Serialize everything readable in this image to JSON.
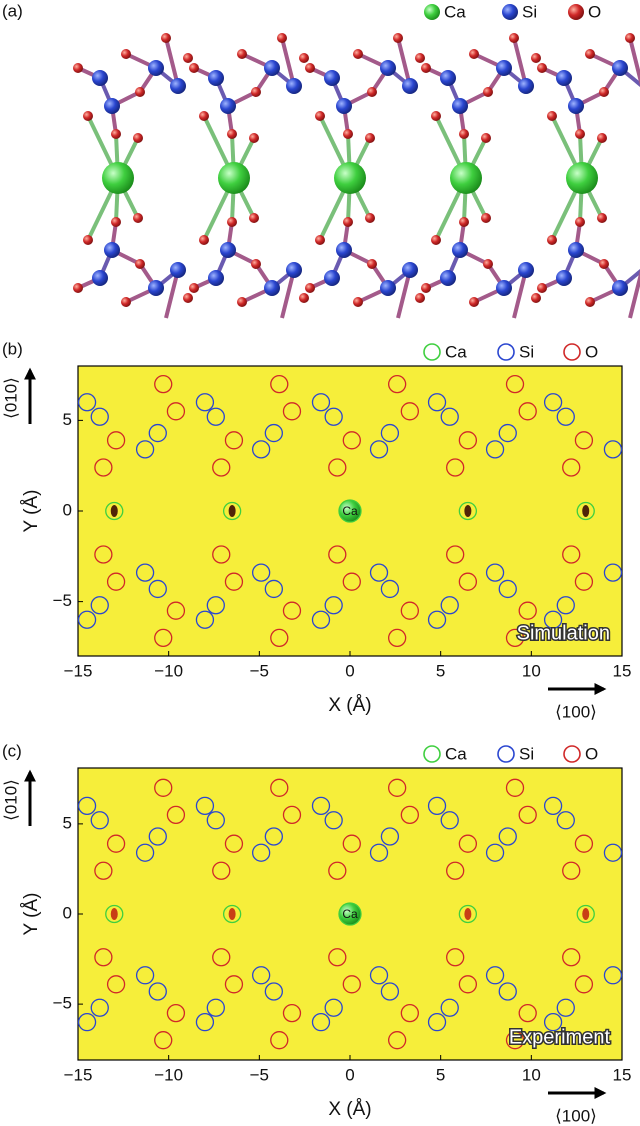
{
  "panel_a": {
    "label": "(a)",
    "legend": [
      {
        "name": "Ca",
        "color": "#3fcf3f"
      },
      {
        "name": "Si",
        "color": "#2a46d0"
      },
      {
        "name": "O",
        "color": "#d02828"
      }
    ]
  },
  "chart_data": [
    {
      "type": "scatter",
      "panel_label": "(b)",
      "annotation": "Simulation",
      "center_label": "Ca",
      "x_label": "X (Å)",
      "y_label": "Y (Å)",
      "x_direction": "⟨100⟩",
      "y_direction": "⟨010⟩",
      "xlim": [
        -15,
        15
      ],
      "ylim": [
        -8,
        8
      ],
      "xticks": [
        {
          "value": -15,
          "label": "−15"
        },
        {
          "value": -10,
          "label": "−10"
        },
        {
          "value": -5,
          "label": "−5"
        },
        0,
        5,
        10,
        15
      ],
      "yticks": [
        {
          "value": -5,
          "label": "−5"
        },
        0,
        5
      ],
      "series": [
        {
          "name": "Ca",
          "color": "#3fcf3f",
          "x": [
            -13,
            -6.5,
            0,
            6.5,
            13
          ],
          "y": [
            0,
            0,
            0,
            0,
            0
          ]
        },
        {
          "name": "Si",
          "color": "#2a46d0",
          "x": [
            -14.5,
            -13.8,
            -11.3,
            -10.6,
            -8.0,
            -7.4,
            -4.9,
            -4.2,
            -1.6,
            -0.9,
            1.6,
            2.2,
            4.8,
            5.5,
            8.0,
            8.7,
            11.2,
            11.9,
            14.5,
            -14.5,
            -13.8,
            -11.3,
            -10.6,
            -8.0,
            -7.4,
            -4.9,
            -4.2,
            -1.6,
            -0.9,
            1.6,
            2.2,
            4.8,
            5.5,
            8.0,
            8.7,
            11.2,
            11.9,
            14.5
          ],
          "y": [
            6.0,
            5.2,
            3.4,
            4.3,
            6.0,
            5.2,
            3.4,
            4.3,
            6.0,
            5.2,
            3.4,
            4.3,
            6.0,
            5.2,
            3.4,
            4.3,
            6.0,
            5.2,
            3.4,
            -6.0,
            -5.2,
            -3.4,
            -4.3,
            -6.0,
            -5.2,
            -3.4,
            -4.3,
            -6.0,
            -5.2,
            -3.4,
            -4.3,
            -6.0,
            -5.2,
            -3.4,
            -4.3,
            -6.0,
            -5.2,
            -3.4
          ]
        },
        {
          "name": "O",
          "color": "#d02828",
          "x": [
            -10.3,
            -9.6,
            -12.9,
            -13.6,
            -3.9,
            -3.2,
            -6.4,
            -7.1,
            2.6,
            3.3,
            0.1,
            -0.7,
            9.1,
            9.8,
            6.5,
            5.8,
            12.9,
            12.2,
            -10.3,
            -9.6,
            -12.9,
            -13.6,
            -3.9,
            -3.2,
            -6.4,
            -7.1,
            2.6,
            3.3,
            0.1,
            -0.7,
            9.1,
            9.8,
            6.5,
            5.8,
            12.9,
            12.2
          ],
          "y": [
            7.0,
            5.5,
            3.9,
            2.4,
            7.0,
            5.5,
            3.9,
            2.4,
            7.0,
            5.5,
            3.9,
            2.4,
            7.0,
            5.5,
            3.9,
            2.4,
            3.9,
            2.4,
            -7.0,
            -5.5,
            -3.9,
            -2.4,
            -7.0,
            -5.5,
            -3.9,
            -2.4,
            -7.0,
            -5.5,
            -3.9,
            -2.4,
            -7.0,
            -5.5,
            -3.9,
            -2.4,
            -3.9,
            -2.4
          ]
        }
      ]
    },
    {
      "type": "scatter",
      "panel_label": "(c)",
      "annotation": "Experiment",
      "center_label": "Ca",
      "x_label": "X (Å)",
      "y_label": "Y (Å)",
      "x_direction": "⟨100⟩",
      "y_direction": "⟨010⟩",
      "xlim": [
        -15,
        15
      ],
      "ylim": [
        -8.1,
        8.1
      ],
      "xticks": [
        {
          "value": -15,
          "label": "−15"
        },
        {
          "value": -10,
          "label": "−10"
        },
        {
          "value": -5,
          "label": "−5"
        },
        0,
        5,
        10,
        15
      ],
      "yticks": [
        {
          "value": -5,
          "label": "−5"
        },
        0,
        5
      ],
      "series": [
        {
          "name": "Ca",
          "color": "#3fcf3f",
          "x": [
            -13,
            -6.5,
            0,
            6.5,
            13
          ],
          "y": [
            0,
            0,
            0,
            0,
            0
          ]
        },
        {
          "name": "Si",
          "color": "#2a46d0",
          "x": [
            -14.5,
            -13.8,
            -11.3,
            -10.6,
            -8.0,
            -7.4,
            -4.9,
            -4.2,
            -1.6,
            -0.9,
            1.6,
            2.2,
            4.8,
            5.5,
            8.0,
            8.7,
            11.2,
            11.9,
            14.5,
            -14.5,
            -13.8,
            -11.3,
            -10.6,
            -8.0,
            -7.4,
            -4.9,
            -4.2,
            -1.6,
            -0.9,
            1.6,
            2.2,
            4.8,
            5.5,
            8.0,
            8.7,
            11.2,
            11.9,
            14.5
          ],
          "y": [
            6.0,
            5.2,
            3.4,
            4.3,
            6.0,
            5.2,
            3.4,
            4.3,
            6.0,
            5.2,
            3.4,
            4.3,
            6.0,
            5.2,
            3.4,
            4.3,
            6.0,
            5.2,
            3.4,
            -6.0,
            -5.2,
            -3.4,
            -4.3,
            -6.0,
            -5.2,
            -3.4,
            -4.3,
            -6.0,
            -5.2,
            -3.4,
            -4.3,
            -6.0,
            -5.2,
            -3.4,
            -4.3,
            -6.0,
            -5.2,
            -3.4
          ]
        },
        {
          "name": "O",
          "color": "#d02828",
          "x": [
            -10.3,
            -9.6,
            -12.9,
            -13.6,
            -3.9,
            -3.2,
            -6.4,
            -7.1,
            2.6,
            3.3,
            0.1,
            -0.7,
            9.1,
            9.8,
            6.5,
            5.8,
            12.9,
            12.2,
            -10.3,
            -9.6,
            -12.9,
            -13.6,
            -3.9,
            -3.2,
            -6.4,
            -7.1,
            2.6,
            3.3,
            0.1,
            -0.7,
            9.1,
            9.8,
            6.5,
            5.8,
            12.9,
            12.2
          ],
          "y": [
            7.0,
            5.5,
            3.9,
            2.4,
            7.0,
            5.5,
            3.9,
            2.4,
            7.0,
            5.5,
            3.9,
            2.4,
            7.0,
            5.5,
            3.9,
            2.4,
            3.9,
            2.4,
            -7.0,
            -5.5,
            -3.9,
            -2.4,
            -7.0,
            -5.5,
            -3.9,
            -2.4,
            -7.0,
            -5.5,
            -3.9,
            -2.4,
            -7.0,
            -5.5,
            -3.9,
            -2.4,
            -3.9,
            -2.4
          ]
        }
      ]
    }
  ]
}
